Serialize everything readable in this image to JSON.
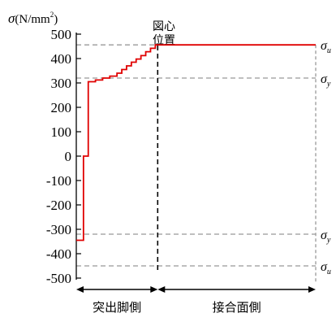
{
  "chart_data": {
    "type": "line",
    "ylabel": {
      "symbol": "σ",
      "unit": "(N/mm",
      "superscript": "2",
      "close": ")"
    },
    "ylim": [
      -500,
      500
    ],
    "yticks": [
      "500",
      "400",
      "300",
      "200",
      "100",
      "0",
      "-100",
      "-200",
      "-300",
      "-400",
      "-500"
    ],
    "ytick_values": [
      500,
      400,
      300,
      200,
      100,
      0,
      -100,
      -200,
      -300,
      -400,
      -500
    ],
    "xlim": [
      0,
      100
    ],
    "series": [
      {
        "color": "#e00000",
        "step_points": [
          [
            0,
            -345
          ],
          [
            3,
            -345
          ],
          [
            3,
            0
          ],
          [
            5,
            0
          ],
          [
            5,
            305
          ],
          [
            8,
            305
          ],
          [
            8,
            312
          ],
          [
            11,
            312
          ],
          [
            11,
            320
          ],
          [
            14,
            320
          ],
          [
            14,
            328
          ],
          [
            17,
            328
          ],
          [
            17,
            340
          ],
          [
            19,
            340
          ],
          [
            19,
            355
          ],
          [
            21,
            355
          ],
          [
            21,
            370
          ],
          [
            23,
            370
          ],
          [
            23,
            385
          ],
          [
            25,
            385
          ],
          [
            25,
            398
          ],
          [
            27,
            398
          ],
          [
            27,
            412
          ],
          [
            29,
            412
          ],
          [
            29,
            428
          ],
          [
            31,
            428
          ],
          [
            31,
            442
          ],
          [
            33,
            442
          ],
          [
            33,
            456
          ],
          [
            100,
            456
          ]
        ]
      }
    ],
    "reference_lines": [
      {
        "value": 456,
        "sub": "u"
      },
      {
        "value": 320,
        "sub": "y"
      },
      {
        "value": -320,
        "sub": "y"
      },
      {
        "value": -450,
        "sub": "u"
      }
    ],
    "reference_symbol": "σ",
    "center_line": {
      "x": 34,
      "label_line1": "図心",
      "label_line2": "位置"
    },
    "bottom_regions": [
      {
        "label": "突出脚側",
        "from": 0,
        "to": 34
      },
      {
        "label": "接合面側",
        "from": 34,
        "to": 100
      }
    ],
    "colors": {
      "series": "#e00000",
      "reference": "#999999",
      "axis": "#000000"
    }
  }
}
